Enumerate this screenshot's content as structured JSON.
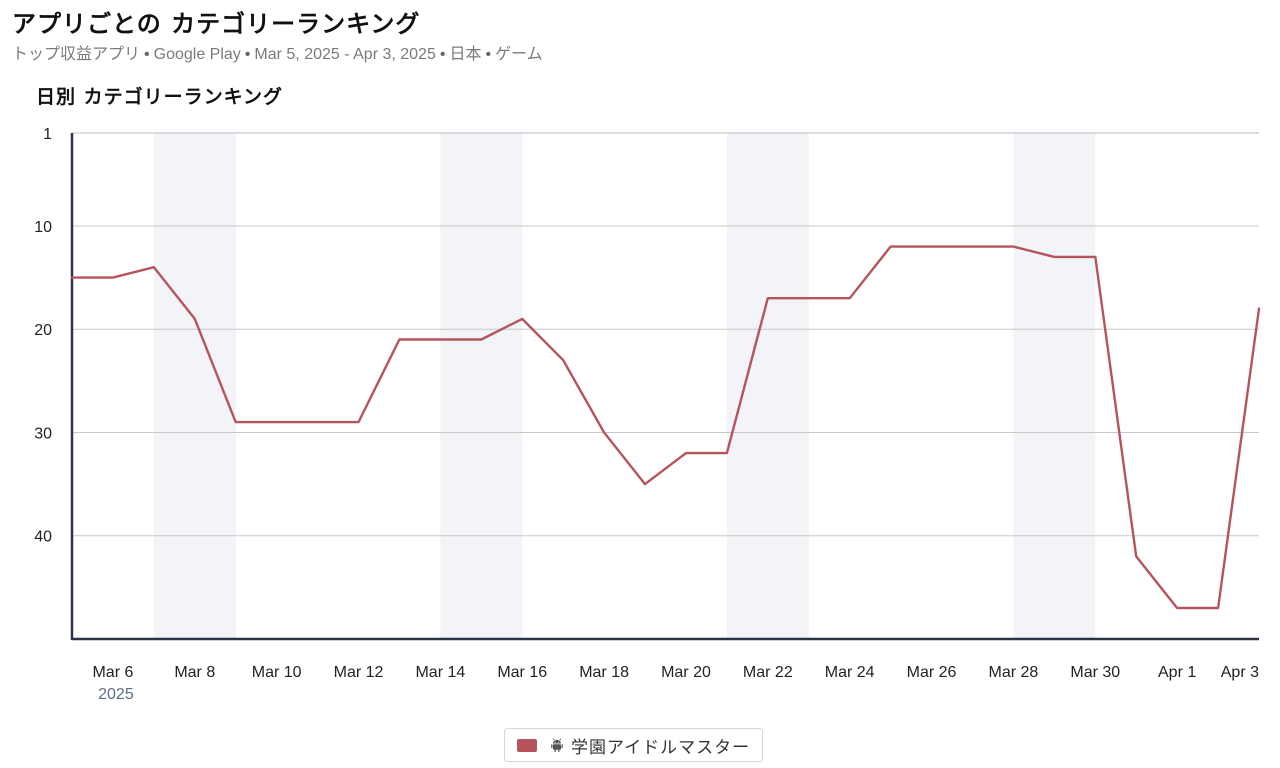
{
  "header": {
    "title": "アプリごとの カテゴリーランキング",
    "subtitle_parts": [
      "トップ収益アプリ",
      "Google Play",
      "Mar 5, 2025 - Apr 3, 2025",
      "日本",
      "ゲーム"
    ],
    "separator": "•"
  },
  "chart_data": {
    "type": "line",
    "title": "日別 カテゴリーランキング",
    "x": [
      "2025-03-05",
      "2025-03-06",
      "2025-03-07",
      "2025-03-08",
      "2025-03-09",
      "2025-03-10",
      "2025-03-11",
      "2025-03-12",
      "2025-03-13",
      "2025-03-14",
      "2025-03-15",
      "2025-03-16",
      "2025-03-17",
      "2025-03-18",
      "2025-03-19",
      "2025-03-20",
      "2025-03-21",
      "2025-03-22",
      "2025-03-23",
      "2025-03-24",
      "2025-03-25",
      "2025-03-26",
      "2025-03-27",
      "2025-03-28",
      "2025-03-29",
      "2025-03-30",
      "2025-03-31",
      "2025-04-01",
      "2025-04-02",
      "2025-04-03"
    ],
    "series": [
      {
        "name": "学園アイドルマスター",
        "platform": "android",
        "color": "#b5545c",
        "values": [
          15,
          15,
          14,
          19,
          29,
          29,
          29,
          29,
          21,
          21,
          21,
          19,
          23,
          30,
          35,
          32,
          32,
          17,
          17,
          17,
          12,
          12,
          12,
          12,
          13,
          13,
          42,
          47,
          47,
          18
        ]
      }
    ],
    "y_axis": {
      "reversed": true,
      "ylim": [
        1,
        50
      ],
      "ticks": [
        1,
        10,
        20,
        30,
        40
      ]
    },
    "x_ticks": [
      {
        "date": "2025-03-06",
        "label": "Mar 6",
        "sub": "2025"
      },
      {
        "date": "2025-03-08",
        "label": "Mar 8"
      },
      {
        "date": "2025-03-10",
        "label": "Mar 10"
      },
      {
        "date": "2025-03-12",
        "label": "Mar 12"
      },
      {
        "date": "2025-03-14",
        "label": "Mar 14"
      },
      {
        "date": "2025-03-16",
        "label": "Mar 16"
      },
      {
        "date": "2025-03-18",
        "label": "Mar 18"
      },
      {
        "date": "2025-03-20",
        "label": "Mar 20"
      },
      {
        "date": "2025-03-22",
        "label": "Mar 22"
      },
      {
        "date": "2025-03-24",
        "label": "Mar 24"
      },
      {
        "date": "2025-03-26",
        "label": "Mar 26"
      },
      {
        "date": "2025-03-28",
        "label": "Mar 28"
      },
      {
        "date": "2025-03-30",
        "label": "Mar 30"
      },
      {
        "date": "2025-04-01",
        "label": "Apr 1"
      },
      {
        "date": "2025-04-03",
        "label": "Apr 3"
      }
    ],
    "weekend_bands": [
      [
        "2025-03-07",
        "2025-03-09"
      ],
      [
        "2025-03-14",
        "2025-03-16"
      ],
      [
        "2025-03-21",
        "2025-03-23"
      ],
      [
        "2025-03-28",
        "2025-03-30"
      ]
    ],
    "grid": true,
    "legend_position": "bottom-center",
    "colors": {
      "band": "#f3f4f7",
      "grid": "#c8c8c8",
      "axis": "#2b3345"
    }
  }
}
